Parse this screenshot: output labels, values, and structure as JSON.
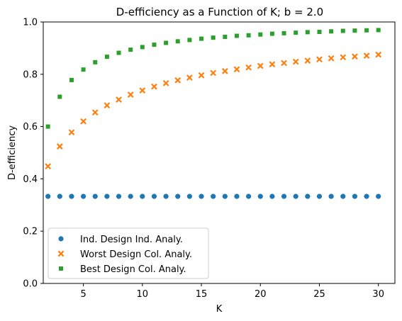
{
  "chart_data": {
    "type": "scatter",
    "title": "D-efficiency as a Function of K; b = 2.0",
    "xlabel": "K",
    "ylabel": "D-efficiency",
    "xlim": [
      1.6,
      31.4
    ],
    "ylim": [
      0.0,
      1.0
    ],
    "xticks": [
      5,
      10,
      15,
      20,
      25,
      30
    ],
    "yticks": [
      0.0,
      0.2,
      0.4,
      0.6,
      0.8,
      1.0
    ],
    "xtick_labels": [
      "5",
      "10",
      "15",
      "20",
      "25",
      "30"
    ],
    "ytick_labels": [
      "0.0",
      "0.2",
      "0.4",
      "0.6",
      "0.8",
      "1.0"
    ],
    "grid": false,
    "legend_position": "lower-left",
    "x": [
      2,
      3,
      4,
      5,
      6,
      7,
      8,
      9,
      10,
      11,
      12,
      13,
      14,
      15,
      16,
      17,
      18,
      19,
      20,
      21,
      22,
      23,
      24,
      25,
      26,
      27,
      28,
      29,
      30
    ],
    "series": [
      {
        "name": "Ind. Design Ind. Analy.",
        "marker": "circle",
        "color": "#1f77b4",
        "values": [
          0.333,
          0.333,
          0.333,
          0.333,
          0.333,
          0.333,
          0.333,
          0.333,
          0.333,
          0.333,
          0.333,
          0.333,
          0.333,
          0.333,
          0.333,
          0.333,
          0.333,
          0.333,
          0.333,
          0.333,
          0.333,
          0.333,
          0.333,
          0.333,
          0.333,
          0.333,
          0.333,
          0.333,
          0.333
        ]
      },
      {
        "name": "Worst Design Col. Analy.",
        "marker": "x",
        "color": "#ff7f0e",
        "values": [
          0.448,
          0.524,
          0.578,
          0.62,
          0.654,
          0.681,
          0.703,
          0.722,
          0.738,
          0.753,
          0.766,
          0.777,
          0.787,
          0.796,
          0.805,
          0.812,
          0.819,
          0.826,
          0.832,
          0.838,
          0.843,
          0.848,
          0.852,
          0.857,
          0.861,
          0.865,
          0.868,
          0.871,
          0.875
        ]
      },
      {
        "name": "Best Design Col. Analy.",
        "marker": "square",
        "color": "#2ca02c",
        "values": [
          0.6,
          0.714,
          0.778,
          0.818,
          0.846,
          0.867,
          0.882,
          0.894,
          0.904,
          0.913,
          0.92,
          0.926,
          0.931,
          0.936,
          0.94,
          0.943,
          0.947,
          0.949,
          0.952,
          0.955,
          0.957,
          0.959,
          0.961,
          0.962,
          0.964,
          0.966,
          0.967,
          0.968,
          0.969
        ]
      }
    ]
  }
}
